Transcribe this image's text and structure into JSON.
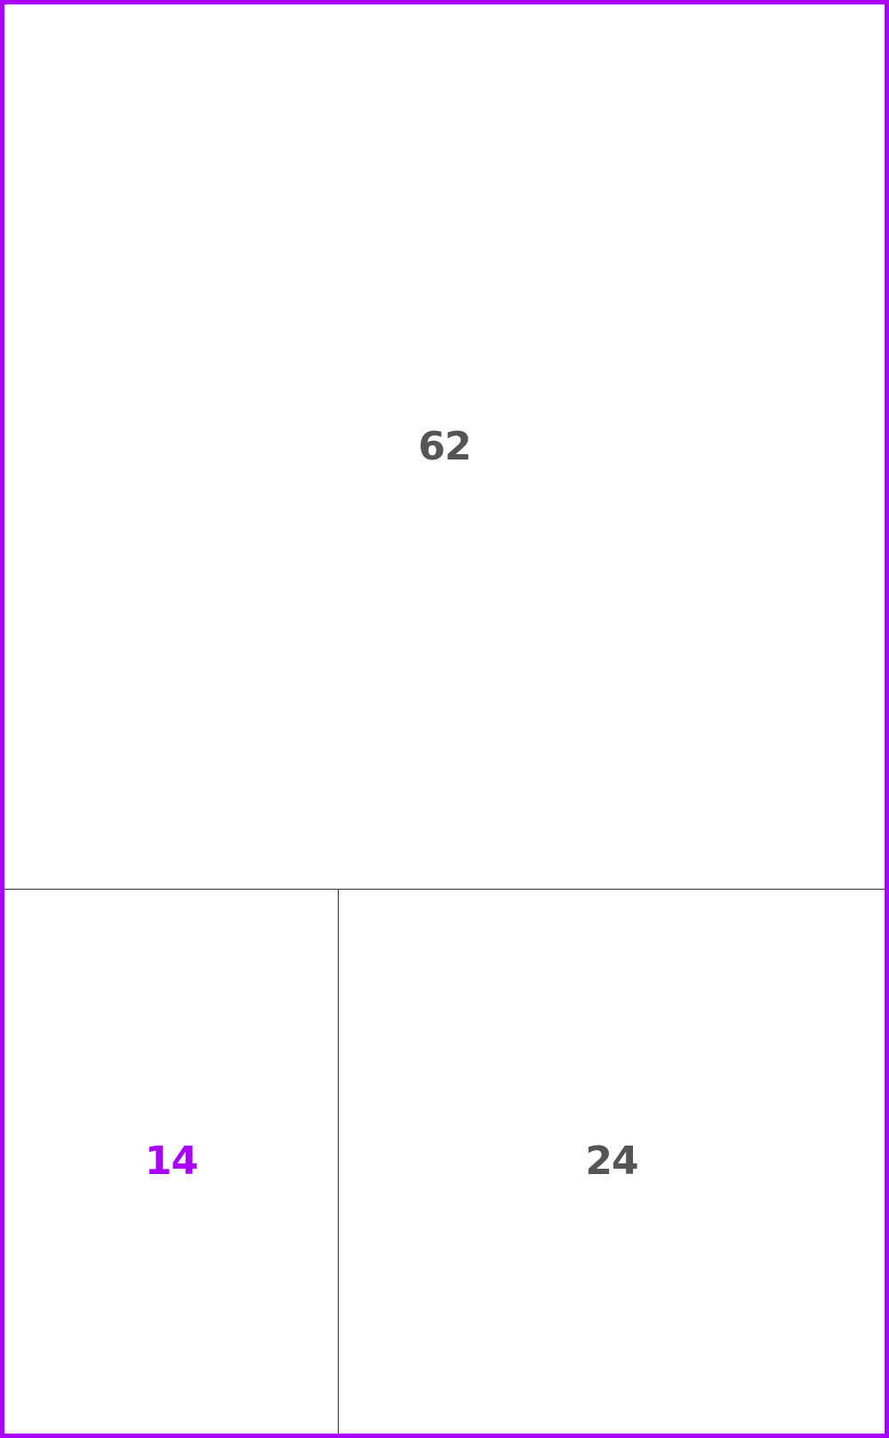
{
  "cells": [
    {
      "value": "62",
      "color": "#555555"
    },
    {
      "value": "14",
      "color": "#aa00ff"
    },
    {
      "value": "24",
      "color": "#555555"
    }
  ],
  "colors": {
    "frame": "#aa00ff",
    "highlight_text": "#aa00ff",
    "text": "#555555",
    "divider": "#333333"
  }
}
